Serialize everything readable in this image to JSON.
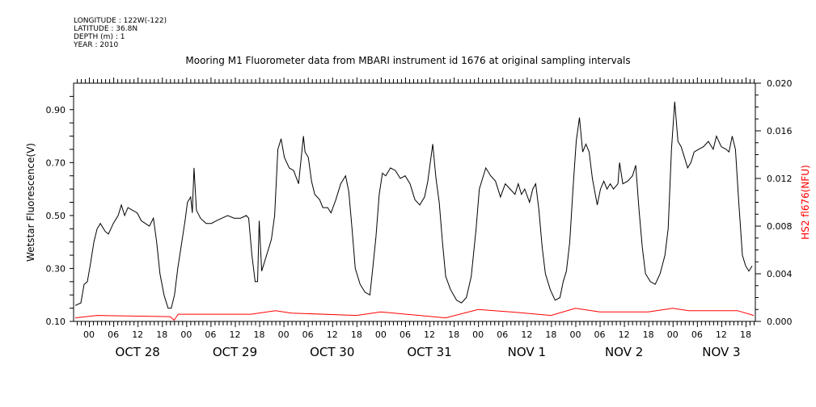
{
  "header": {
    "lines": [
      "LONGITUDE : 122W(-122)",
      "LATITUDE : 36.8N",
      "DEPTH (m) : 1",
      "YEAR : 2010"
    ]
  },
  "chart_data": {
    "type": "line",
    "title": "Mooring M1 Fluorometer data from MBARI instrument id 1676 at original sampling intervals",
    "xlabel": "",
    "x_units": "hours since OCT 28 00:00",
    "xlim": [
      -3.8,
      164.4
    ],
    "x_tick_labels": [
      "00",
      "06",
      "12",
      "18"
    ],
    "day_labels": [
      "OCT 28",
      "OCT 29",
      "OCT 30",
      "OCT 31",
      "NOV  1",
      "NOV  2",
      "NOV  3"
    ],
    "ylabel": "Wetstar Fluorescence(V)",
    "ylim": [
      0.1,
      1.0
    ],
    "y_ticks": [
      "0.10",
      "0.30",
      "0.50",
      "0.70",
      "0.90"
    ],
    "y2label": "HS2 fl676(NFU)",
    "y2lim": [
      0,
      0.02
    ],
    "y2_ticks": [
      "0.000",
      "0.004",
      "0.008",
      "0.012",
      "0.016",
      "0.020"
    ],
    "series": [
      {
        "name": "Wetstar Fluorescence(V)",
        "axis": "left",
        "color": "#000000",
        "points": [
          [
            -3.4,
            0.16
          ],
          [
            -2.0,
            0.17
          ],
          [
            -1.2,
            0.24
          ],
          [
            -0.4,
            0.25
          ],
          [
            0.4,
            0.32
          ],
          [
            1.2,
            0.4
          ],
          [
            2.0,
            0.45
          ],
          [
            2.8,
            0.47
          ],
          [
            4.0,
            0.44
          ],
          [
            4.8,
            0.43
          ],
          [
            6.0,
            0.47
          ],
          [
            7.2,
            0.5
          ],
          [
            8.0,
            0.54
          ],
          [
            8.8,
            0.5
          ],
          [
            9.6,
            0.53
          ],
          [
            10.7,
            0.52
          ],
          [
            11.9,
            0.51
          ],
          [
            12.9,
            0.48
          ],
          [
            13.9,
            0.47
          ],
          [
            14.9,
            0.46
          ],
          [
            15.9,
            0.49
          ],
          [
            16.7,
            0.4
          ],
          [
            17.5,
            0.28
          ],
          [
            18.5,
            0.2
          ],
          [
            19.5,
            0.15
          ],
          [
            20.3,
            0.15
          ],
          [
            21.1,
            0.2
          ],
          [
            21.9,
            0.3
          ],
          [
            22.9,
            0.4
          ],
          [
            23.7,
            0.48
          ],
          [
            24.3,
            0.55
          ],
          [
            25.1,
            0.57
          ],
          [
            25.5,
            0.51
          ],
          [
            25.9,
            0.68
          ],
          [
            26.5,
            0.52
          ],
          [
            27.5,
            0.49
          ],
          [
            28.9,
            0.47
          ],
          [
            30.2,
            0.47
          ],
          [
            31.4,
            0.48
          ],
          [
            32.8,
            0.49
          ],
          [
            34.2,
            0.5
          ],
          [
            35.8,
            0.49
          ],
          [
            37.4,
            0.49
          ],
          [
            38.8,
            0.5
          ],
          [
            39.4,
            0.49
          ],
          [
            40.2,
            0.35
          ],
          [
            41.0,
            0.25
          ],
          [
            41.6,
            0.25
          ],
          [
            42.0,
            0.48
          ],
          [
            42.6,
            0.29
          ],
          [
            43.8,
            0.35
          ],
          [
            45.0,
            0.41
          ],
          [
            45.8,
            0.5
          ],
          [
            46.6,
            0.75
          ],
          [
            47.4,
            0.79
          ],
          [
            48.2,
            0.72
          ],
          [
            49.4,
            0.68
          ],
          [
            50.5,
            0.67
          ],
          [
            51.7,
            0.62
          ],
          [
            52.1,
            0.68
          ],
          [
            52.9,
            0.8
          ],
          [
            53.3,
            0.74
          ],
          [
            54.1,
            0.72
          ],
          [
            54.9,
            0.63
          ],
          [
            55.7,
            0.58
          ],
          [
            56.9,
            0.56
          ],
          [
            57.7,
            0.53
          ],
          [
            58.9,
            0.53
          ],
          [
            59.7,
            0.51
          ],
          [
            60.9,
            0.56
          ],
          [
            62.1,
            0.62
          ],
          [
            63.3,
            0.65
          ],
          [
            64.1,
            0.59
          ],
          [
            64.9,
            0.45
          ],
          [
            65.7,
            0.3
          ],
          [
            66.9,
            0.24
          ],
          [
            68.1,
            0.21
          ],
          [
            69.3,
            0.2
          ],
          [
            70.0,
            0.3
          ],
          [
            70.8,
            0.42
          ],
          [
            71.6,
            0.58
          ],
          [
            72.4,
            0.66
          ],
          [
            73.2,
            0.65
          ],
          [
            74.4,
            0.68
          ],
          [
            75.6,
            0.67
          ],
          [
            76.8,
            0.64
          ],
          [
            78.0,
            0.65
          ],
          [
            79.2,
            0.62
          ],
          [
            80.4,
            0.56
          ],
          [
            81.6,
            0.54
          ],
          [
            82.8,
            0.57
          ],
          [
            83.6,
            0.63
          ],
          [
            84.8,
            0.77
          ],
          [
            85.6,
            0.64
          ],
          [
            86.4,
            0.55
          ],
          [
            87.2,
            0.4
          ],
          [
            88.0,
            0.27
          ],
          [
            89.2,
            0.22
          ],
          [
            90.7,
            0.18
          ],
          [
            91.9,
            0.17
          ],
          [
            93.1,
            0.19
          ],
          [
            94.3,
            0.27
          ],
          [
            95.5,
            0.45
          ],
          [
            96.3,
            0.6
          ],
          [
            97.1,
            0.64
          ],
          [
            97.9,
            0.68
          ],
          [
            99.1,
            0.65
          ],
          [
            100.3,
            0.63
          ],
          [
            101.5,
            0.57
          ],
          [
            102.7,
            0.62
          ],
          [
            103.9,
            0.6
          ],
          [
            105.1,
            0.58
          ],
          [
            105.9,
            0.62
          ],
          [
            106.7,
            0.58
          ],
          [
            107.5,
            0.6
          ],
          [
            108.7,
            0.55
          ],
          [
            109.5,
            0.6
          ],
          [
            110.2,
            0.62
          ],
          [
            111.0,
            0.52
          ],
          [
            111.8,
            0.38
          ],
          [
            112.6,
            0.28
          ],
          [
            113.8,
            0.22
          ],
          [
            115.0,
            0.18
          ],
          [
            116.2,
            0.19
          ],
          [
            117.0,
            0.25
          ],
          [
            117.8,
            0.29
          ],
          [
            118.6,
            0.4
          ],
          [
            119.4,
            0.6
          ],
          [
            120.2,
            0.78
          ],
          [
            121.0,
            0.87
          ],
          [
            121.8,
            0.74
          ],
          [
            122.6,
            0.77
          ],
          [
            123.4,
            0.74
          ],
          [
            124.2,
            0.64
          ],
          [
            125.4,
            0.54
          ],
          [
            126.2,
            0.6
          ],
          [
            127.0,
            0.63
          ],
          [
            127.8,
            0.6
          ],
          [
            128.6,
            0.62
          ],
          [
            129.4,
            0.6
          ],
          [
            130.5,
            0.62
          ],
          [
            130.9,
            0.7
          ],
          [
            131.7,
            0.62
          ],
          [
            132.9,
            0.63
          ],
          [
            134.1,
            0.65
          ],
          [
            134.9,
            0.69
          ],
          [
            135.7,
            0.52
          ],
          [
            136.5,
            0.38
          ],
          [
            137.3,
            0.28
          ],
          [
            138.5,
            0.25
          ],
          [
            139.7,
            0.24
          ],
          [
            140.9,
            0.28
          ],
          [
            142.1,
            0.35
          ],
          [
            142.9,
            0.45
          ],
          [
            143.7,
            0.75
          ],
          [
            144.5,
            0.93
          ],
          [
            145.3,
            0.78
          ],
          [
            146.1,
            0.76
          ],
          [
            146.9,
            0.72
          ],
          [
            147.7,
            0.68
          ],
          [
            148.5,
            0.7
          ],
          [
            149.3,
            0.74
          ],
          [
            150.4,
            0.75
          ],
          [
            151.6,
            0.76
          ],
          [
            152.8,
            0.78
          ],
          [
            154.0,
            0.75
          ],
          [
            154.8,
            0.8
          ],
          [
            156.0,
            0.76
          ],
          [
            157.2,
            0.75
          ],
          [
            157.9,
            0.74
          ],
          [
            158.7,
            0.8
          ],
          [
            159.5,
            0.75
          ],
          [
            160.3,
            0.55
          ],
          [
            161.2,
            0.35
          ],
          [
            162.0,
            0.31
          ],
          [
            162.8,
            0.29
          ],
          [
            163.6,
            0.31
          ]
        ]
      },
      {
        "name": "HS2 fl676(NFU)",
        "axis": "right",
        "color": "#ff0000",
        "points": [
          [
            -3.4,
            0.0003
          ],
          [
            2,
            0.0005
          ],
          [
            20,
            0.0004
          ],
          [
            21,
            0.0001
          ],
          [
            22,
            0.0006
          ],
          [
            40,
            0.0006
          ],
          [
            46,
            0.0009
          ],
          [
            50,
            0.0007
          ],
          [
            66,
            0.0005
          ],
          [
            72,
            0.0008
          ],
          [
            88,
            0.0003
          ],
          [
            96,
            0.001
          ],
          [
            104,
            0.0008
          ],
          [
            114,
            0.0005
          ],
          [
            120,
            0.0011
          ],
          [
            126,
            0.0008
          ],
          [
            138,
            0.0008
          ],
          [
            144,
            0.0011
          ],
          [
            148,
            0.0009
          ],
          [
            160,
            0.0009
          ],
          [
            164,
            0.0005
          ]
        ]
      }
    ]
  }
}
